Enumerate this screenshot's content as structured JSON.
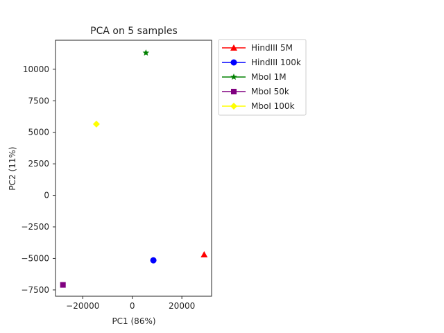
{
  "chart_data": {
    "type": "scatter",
    "title": "PCA on 5 samples",
    "xlabel": "PC1 (86%)",
    "ylabel": "PC2 (11%)",
    "xlim": [
      -31000,
      32000
    ],
    "ylim": [
      -8000,
      12300
    ],
    "xticks": [
      -20000,
      0,
      20000
    ],
    "xtick_labels": [
      "−20000",
      "0",
      "20000"
    ],
    "yticks": [
      -7500,
      -5000,
      -2500,
      0,
      2500,
      5000,
      7500,
      10000
    ],
    "ytick_labels": [
      "−7500",
      "−5000",
      "−2500",
      "0",
      "2500",
      "5000",
      "7500",
      "10000"
    ],
    "grid": false,
    "legend_position": "outside-upper-right",
    "series": [
      {
        "name": "HindIII 5M",
        "color": "#ff0000",
        "marker": "triangle",
        "x": 29000,
        "y": -4700
      },
      {
        "name": "HindIII 100k",
        "color": "#0000ff",
        "marker": "circle",
        "x": 8500,
        "y": -5150
      },
      {
        "name": "MboI 1M",
        "color": "#008000",
        "marker": "star",
        "x": 5500,
        "y": 11300
      },
      {
        "name": "MboI 50k",
        "color": "#800080",
        "marker": "square",
        "x": -28000,
        "y": -7100
      },
      {
        "name": "MboI 100k",
        "color": "#ffff00",
        "marker": "diamond",
        "x": -14500,
        "y": 5650
      }
    ]
  }
}
